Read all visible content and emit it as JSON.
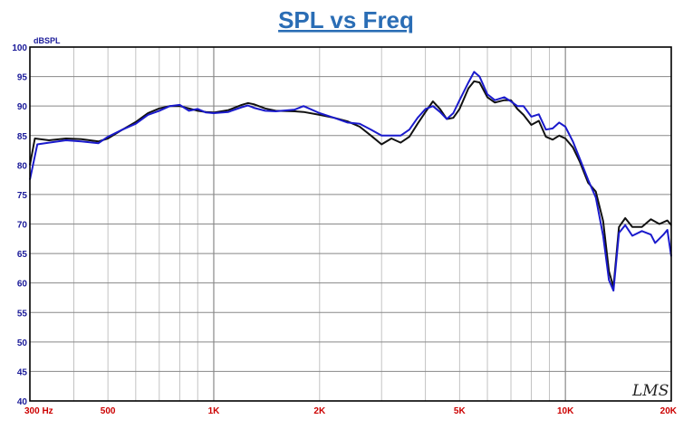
{
  "chart_data": {
    "type": "line",
    "title": "SPL vs Freq",
    "ylabel": "dBSPL",
    "xscale": "log",
    "xlim": [
      300,
      20000
    ],
    "ylim": [
      40,
      100
    ],
    "grid": true,
    "yticks": [
      40,
      45,
      50,
      55,
      60,
      65,
      70,
      75,
      80,
      85,
      90,
      95,
      100
    ],
    "xticks": [
      {
        "value": 300,
        "label": "300 Hz"
      },
      {
        "value": 500,
        "label": "500"
      },
      {
        "value": 1000,
        "label": "1K"
      },
      {
        "value": 2000,
        "label": "2K"
      },
      {
        "value": 5000,
        "label": "5K"
      },
      {
        "value": 10000,
        "label": "10K"
      },
      {
        "value": 20000,
        "label": "20K"
      }
    ],
    "watermark": "LMS",
    "series": [
      {
        "color": "#111111",
        "points": [
          [
            300,
            80
          ],
          [
            310,
            84.5
          ],
          [
            340,
            84.2
          ],
          [
            380,
            84.5
          ],
          [
            420,
            84.4
          ],
          [
            470,
            84.0
          ],
          [
            500,
            84.5
          ],
          [
            550,
            86.0
          ],
          [
            600,
            87.3
          ],
          [
            650,
            88.8
          ],
          [
            700,
            89.6
          ],
          [
            750,
            90.0
          ],
          [
            800,
            90.0
          ],
          [
            850,
            89.6
          ],
          [
            900,
            89.2
          ],
          [
            950,
            89.0
          ],
          [
            1000,
            88.9
          ],
          [
            1100,
            89.3
          ],
          [
            1200,
            90.2
          ],
          [
            1250,
            90.5
          ],
          [
            1300,
            90.3
          ],
          [
            1400,
            89.6
          ],
          [
            1500,
            89.2
          ],
          [
            1700,
            89.1
          ],
          [
            1800,
            89.0
          ],
          [
            2000,
            88.5
          ],
          [
            2200,
            88.0
          ],
          [
            2400,
            87.4
          ],
          [
            2600,
            86.5
          ],
          [
            2800,
            85.0
          ],
          [
            3000,
            83.5
          ],
          [
            3200,
            84.5
          ],
          [
            3400,
            83.8
          ],
          [
            3600,
            84.8
          ],
          [
            3800,
            87.0
          ],
          [
            4000,
            89.0
          ],
          [
            4200,
            90.8
          ],
          [
            4400,
            89.5
          ],
          [
            4600,
            87.8
          ],
          [
            4800,
            88.0
          ],
          [
            5000,
            89.5
          ],
          [
            5300,
            93.0
          ],
          [
            5500,
            94.2
          ],
          [
            5700,
            94.0
          ],
          [
            6000,
            91.5
          ],
          [
            6300,
            90.6
          ],
          [
            6700,
            91.0
          ],
          [
            7000,
            91.0
          ],
          [
            7300,
            89.5
          ],
          [
            7600,
            88.5
          ],
          [
            8000,
            86.8
          ],
          [
            8400,
            87.5
          ],
          [
            8800,
            84.8
          ],
          [
            9200,
            84.3
          ],
          [
            9600,
            85.0
          ],
          [
            10000,
            84.5
          ],
          [
            10500,
            83.0
          ],
          [
            11000,
            80.5
          ],
          [
            11600,
            77.0
          ],
          [
            12200,
            75.5
          ],
          [
            12800,
            70.5
          ],
          [
            13300,
            62.0
          ],
          [
            13700,
            59.3
          ],
          [
            14200,
            69.5
          ],
          [
            14800,
            71.0
          ],
          [
            15500,
            69.5
          ],
          [
            16500,
            69.5
          ],
          [
            17500,
            70.8
          ],
          [
            18500,
            70.0
          ],
          [
            19500,
            70.6
          ],
          [
            20000,
            69.8
          ]
        ]
      },
      {
        "color": "#1a1acc",
        "points": [
          [
            300,
            77.5
          ],
          [
            315,
            83.5
          ],
          [
            340,
            83.8
          ],
          [
            380,
            84.2
          ],
          [
            420,
            84.0
          ],
          [
            470,
            83.7
          ],
          [
            500,
            84.8
          ],
          [
            550,
            86.0
          ],
          [
            600,
            87.0
          ],
          [
            650,
            88.5
          ],
          [
            700,
            89.2
          ],
          [
            750,
            90.0
          ],
          [
            800,
            90.2
          ],
          [
            850,
            89.2
          ],
          [
            900,
            89.5
          ],
          [
            950,
            88.9
          ],
          [
            1000,
            88.8
          ],
          [
            1100,
            89.0
          ],
          [
            1200,
            89.8
          ],
          [
            1250,
            90.1
          ],
          [
            1300,
            89.7
          ],
          [
            1400,
            89.2
          ],
          [
            1500,
            89.1
          ],
          [
            1700,
            89.4
          ],
          [
            1800,
            90.0
          ],
          [
            2000,
            88.8
          ],
          [
            2200,
            88.0
          ],
          [
            2400,
            87.2
          ],
          [
            2600,
            87.0
          ],
          [
            2800,
            86.0
          ],
          [
            3000,
            85.0
          ],
          [
            3200,
            85.0
          ],
          [
            3400,
            85.0
          ],
          [
            3600,
            86.0
          ],
          [
            3800,
            88.0
          ],
          [
            4000,
            89.5
          ],
          [
            4200,
            90.0
          ],
          [
            4400,
            89.0
          ],
          [
            4600,
            87.8
          ],
          [
            4800,
            88.8
          ],
          [
            5000,
            91.0
          ],
          [
            5300,
            94.0
          ],
          [
            5500,
            95.8
          ],
          [
            5700,
            95.0
          ],
          [
            6000,
            92.0
          ],
          [
            6300,
            91.0
          ],
          [
            6700,
            91.5
          ],
          [
            7000,
            90.8
          ],
          [
            7300,
            90.0
          ],
          [
            7600,
            90.0
          ],
          [
            8000,
            88.2
          ],
          [
            8400,
            88.6
          ],
          [
            8800,
            86.0
          ],
          [
            9200,
            86.2
          ],
          [
            9600,
            87.2
          ],
          [
            10000,
            86.5
          ],
          [
            10500,
            84.0
          ],
          [
            11000,
            81.0
          ],
          [
            11600,
            77.5
          ],
          [
            12200,
            74.5
          ],
          [
            12800,
            68.0
          ],
          [
            13300,
            60.5
          ],
          [
            13700,
            58.7
          ],
          [
            14200,
            68.5
          ],
          [
            14800,
            69.8
          ],
          [
            15500,
            68.0
          ],
          [
            16500,
            68.8
          ],
          [
            17500,
            68.2
          ],
          [
            18000,
            66.8
          ],
          [
            19000,
            68.2
          ],
          [
            19500,
            69.0
          ],
          [
            20000,
            64.5
          ]
        ]
      }
    ]
  }
}
